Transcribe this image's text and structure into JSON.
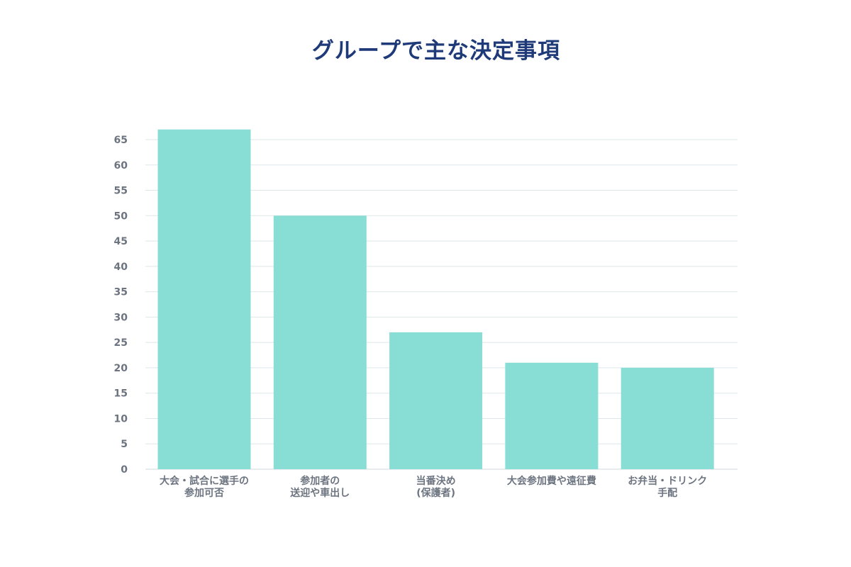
{
  "chart_data": {
    "type": "bar",
    "title": "グループで主な決定事項",
    "categories": [
      [
        "大会・試合に選手の",
        "参加可否"
      ],
      [
        "参加者の",
        "送迎や車出し"
      ],
      [
        "当番決め",
        "(保護者)"
      ],
      [
        "大会参加費や遠征費"
      ],
      [
        "お弁当・ドリンク",
        "手配"
      ]
    ],
    "values": [
      67,
      50,
      27,
      21,
      20
    ],
    "ylim": [
      0,
      65
    ],
    "yticks": [
      0,
      5,
      10,
      15,
      20,
      25,
      30,
      35,
      40,
      45,
      50,
      55,
      60,
      65
    ],
    "xlabel": "",
    "ylabel": "",
    "grid": true,
    "bar_color": "#88ddd4",
    "title_color": "#1f3a78",
    "label_color": "#6c7480"
  }
}
